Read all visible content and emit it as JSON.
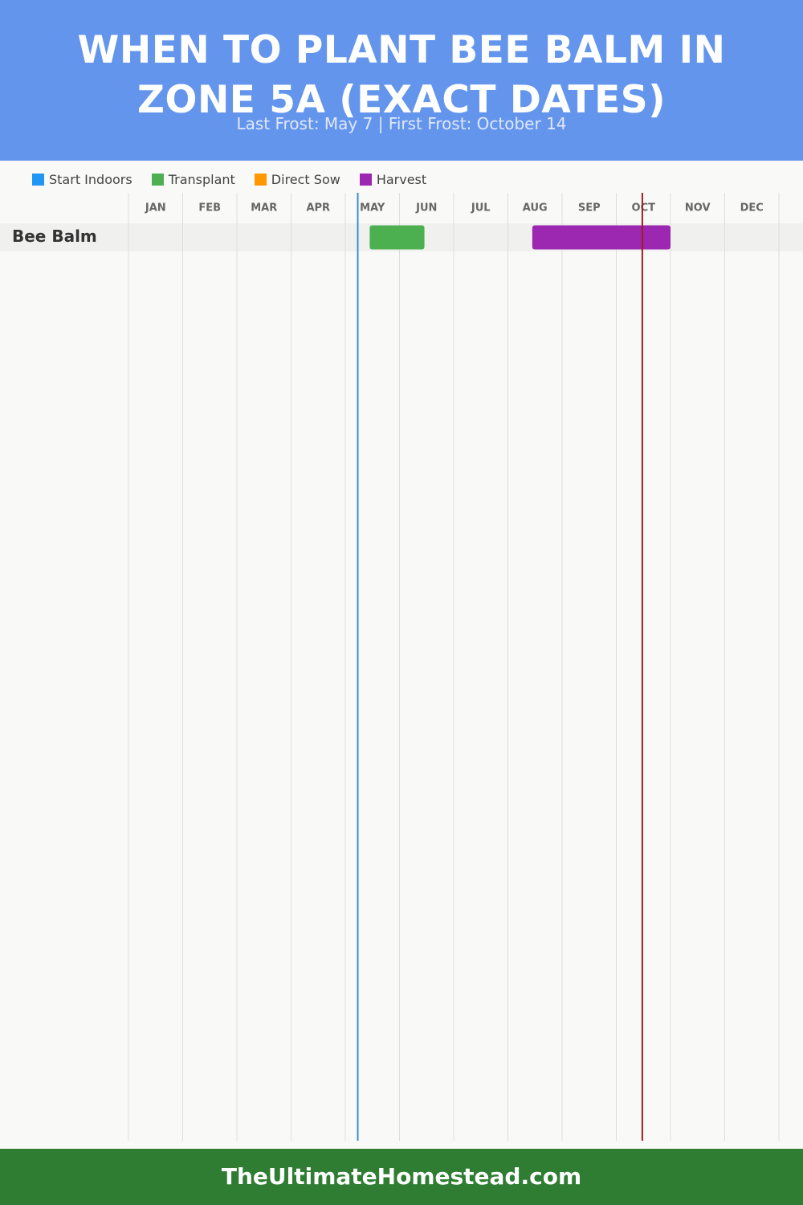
{
  "chart_data": {
    "type": "gantt",
    "title": "WHEN TO PLANT BEE BALM IN ZONE 5A (EXACT DATES)",
    "subtitle": "Last Frost: May 7 | First Frost: October 14",
    "months": [
      "JAN",
      "FEB",
      "MAR",
      "APR",
      "MAY",
      "JUN",
      "JUL",
      "AUG",
      "SEP",
      "OCT",
      "NOV",
      "DEC"
    ],
    "xlim": [
      0,
      12
    ],
    "categories": [
      "Bee Balm"
    ],
    "series": [
      {
        "name": "Start Indoors",
        "color": "#2196f3",
        "values": [
          null
        ]
      },
      {
        "name": "Transplant",
        "color": "#4caf50",
        "values": [
          [
            4.45,
            5.46
          ]
        ]
      },
      {
        "name": "Direct Sow",
        "color": "#ff9800",
        "values": [
          null
        ]
      },
      {
        "name": "Harvest",
        "color": "#9c27b0",
        "values": [
          [
            7.45,
            10.0
          ]
        ]
      }
    ],
    "frost_lines": [
      {
        "value": 4.23,
        "color": "#3a8fd0"
      },
      {
        "value": 9.48,
        "color": "#a01c1c"
      }
    ]
  },
  "footer": "TheUltimateHomestead.com"
}
